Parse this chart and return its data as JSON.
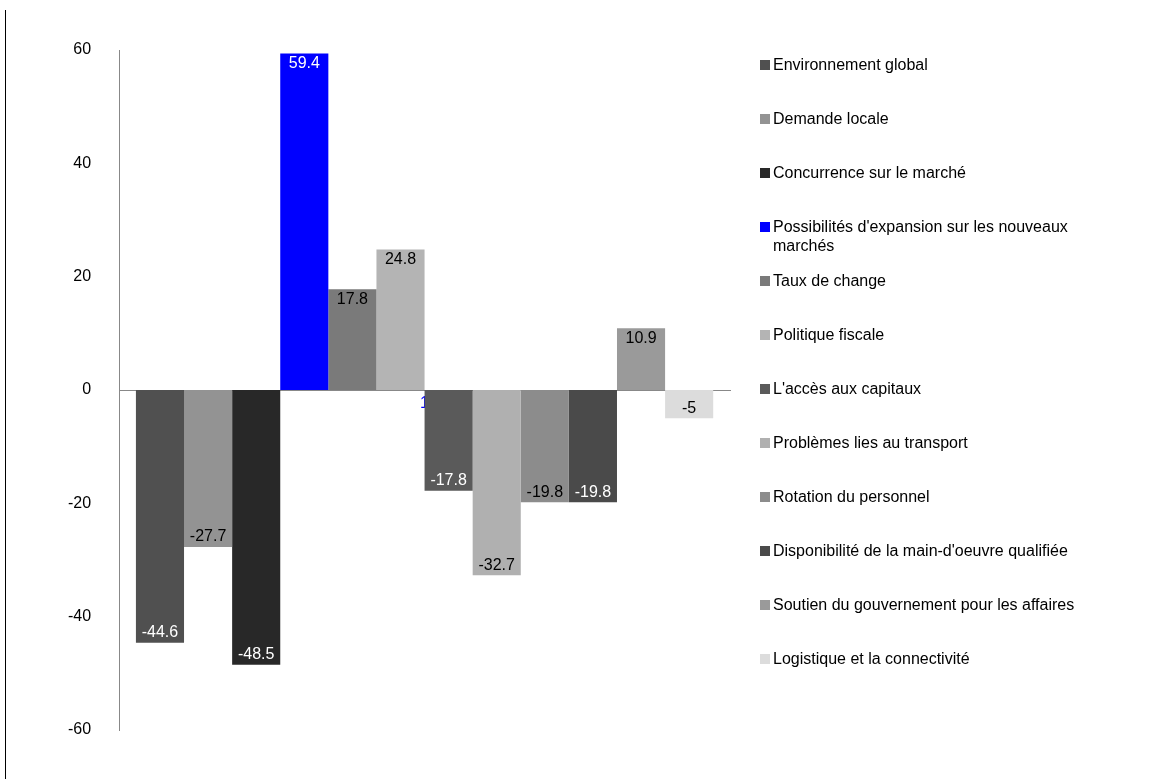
{
  "chart_data": {
    "type": "bar",
    "categories": [
      "1"
    ],
    "series": [
      {
        "name": "Environnement global",
        "color": "#505050",
        "values": [
          -44.6
        ]
      },
      {
        "name": "Demande locale",
        "color": "#939393",
        "values": [
          -27.7
        ]
      },
      {
        "name": "Concurrence sur le marché",
        "color": "#282828",
        "values": [
          -48.5
        ]
      },
      {
        "name": "Possibilités d'expansion sur les nouveaux marchés",
        "color": "#0000ff",
        "values": [
          59.4
        ]
      },
      {
        "name": "Taux de change",
        "color": "#7a7a7a",
        "values": [
          17.8
        ]
      },
      {
        "name": "Politique fiscale",
        "color": "#b4b4b4",
        "values": [
          24.8
        ]
      },
      {
        "name": "L'accès aux capitaux",
        "color": "#5a5a5a",
        "values": [
          -17.8
        ]
      },
      {
        "name": "Problèmes lies au transport",
        "color": "#b0b0b0",
        "values": [
          -32.7
        ]
      },
      {
        "name": "Rotation du personnel",
        "color": "#8c8c8c",
        "values": [
          -19.8
        ]
      },
      {
        "name": "Disponibilité de la main-d'oeuvre qualifiée",
        "color": "#4a4a4a",
        "values": [
          -19.8
        ]
      },
      {
        "name": "Soutien du gouvernement pour les affaires",
        "color": "#9a9a9a",
        "values": [
          10.9
        ]
      },
      {
        "name": "Logistique et la connectivité",
        "color": "#dcdcdc",
        "values": [
          -5
        ]
      }
    ],
    "ylim": [
      -60,
      60
    ],
    "yticks": [
      -60,
      -40,
      -20,
      0,
      20,
      40,
      60
    ],
    "data_labels": true,
    "legend": "right"
  }
}
